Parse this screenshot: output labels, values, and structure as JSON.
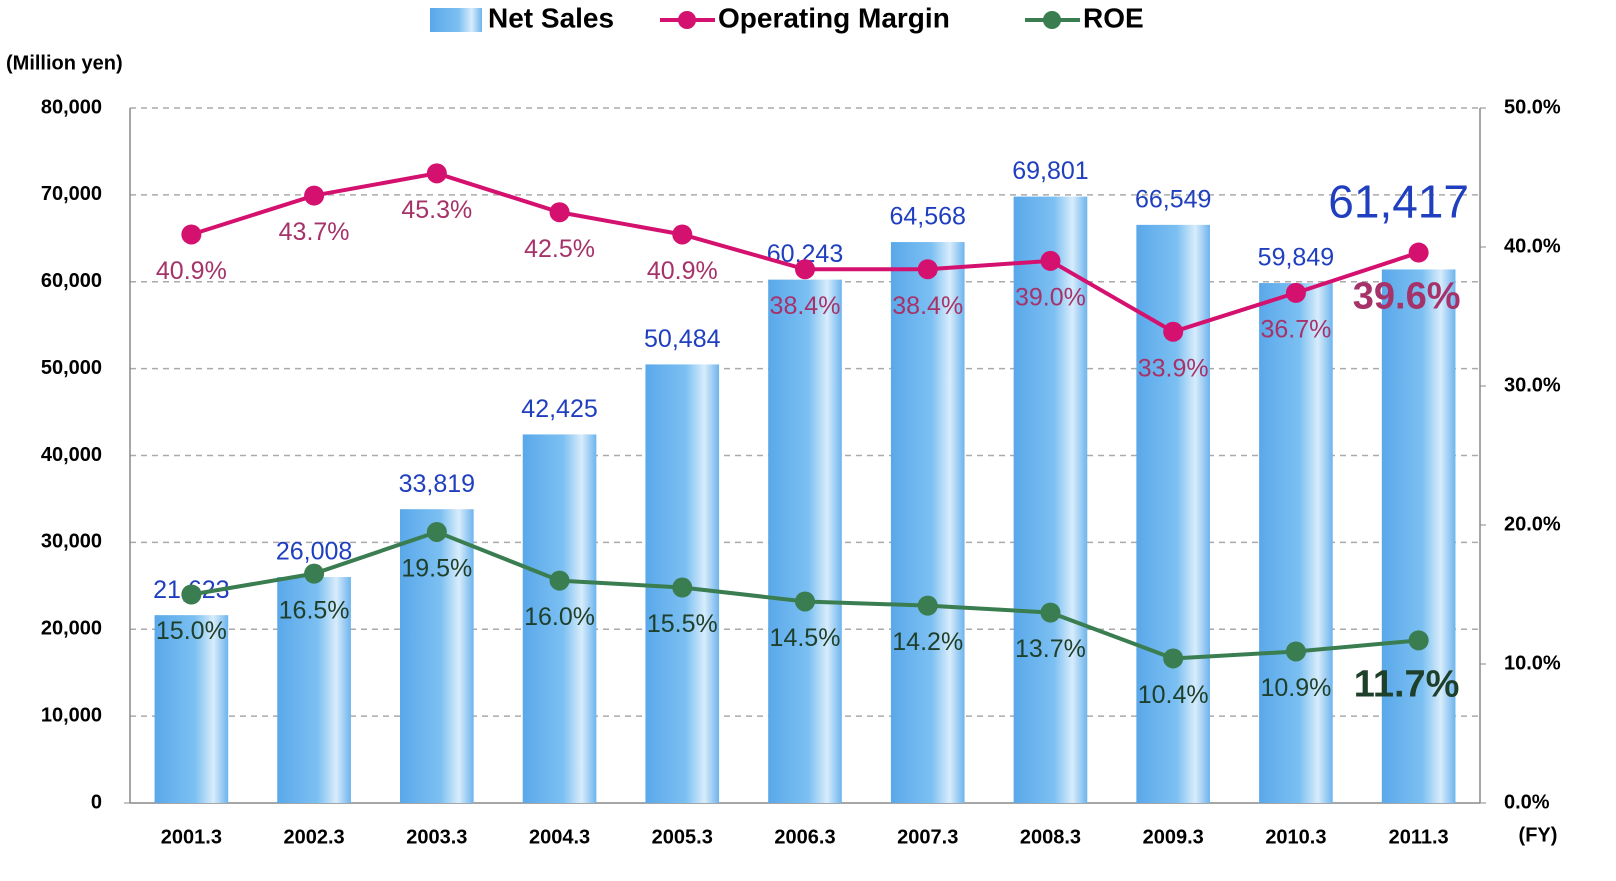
{
  "chart_data": {
    "type": "bar",
    "y_label": "(Million yen)",
    "x_label": "(FY)",
    "categories": [
      "2001.3",
      "2002.3",
      "2003.3",
      "2004.3",
      "2005.3",
      "2006.3",
      "2007.3",
      "2008.3",
      "2009.3",
      "2010.3",
      "2011.3"
    ],
    "series": [
      {
        "name": "Net Sales",
        "type": "bar",
        "axis": "y",
        "color": "#6db4ee",
        "label_color": "#1f3fbf",
        "values": [
          21623,
          26008,
          33819,
          42425,
          50484,
          60243,
          64568,
          69801,
          66549,
          59849,
          61417
        ],
        "value_labels": [
          "21,623",
          "26,008",
          "33,819",
          "42,425",
          "50,484",
          "60,243",
          "64,568",
          "69,801",
          "66,549",
          "59,849",
          "61,417"
        ]
      },
      {
        "name": "Operating Margin",
        "type": "line",
        "axis": "y2",
        "color": "#d4116e",
        "label_color": "#a5336a",
        "values": [
          40.9,
          43.7,
          45.3,
          42.5,
          40.9,
          38.4,
          38.4,
          39.0,
          33.9,
          36.7,
          39.6
        ],
        "value_labels": [
          "40.9%",
          "43.7%",
          "45.3%",
          "42.5%",
          "40.9%",
          "38.4%",
          "38.4%",
          "39.0%",
          "33.9%",
          "36.7%",
          "39.6%"
        ]
      },
      {
        "name": "ROE",
        "type": "line",
        "axis": "y2",
        "color": "#3a7d50",
        "label_color": "#1e3f2a",
        "values": [
          15.0,
          16.5,
          19.5,
          16.0,
          15.5,
          14.5,
          14.2,
          13.7,
          10.4,
          10.9,
          11.7
        ],
        "value_labels": [
          "15.0%",
          "16.5%",
          "19.5%",
          "16.0%",
          "15.5%",
          "14.5%",
          "14.2%",
          "13.7%",
          "10.4%",
          "10.9%",
          "11.7%"
        ]
      }
    ],
    "ylim": [
      0,
      80000
    ],
    "yticks": [
      0,
      {
        "value": 10000,
        "label": "10,000"
      },
      {
        "value": 20000,
        "label": "20,000"
      },
      {
        "value": 30000,
        "label": "30,000"
      },
      {
        "value": 40000,
        "label": "40,000"
      },
      {
        "value": 50000,
        "label": "50,000"
      },
      {
        "value": 60000,
        "label": "60,000"
      },
      {
        "value": 70000,
        "label": "70,000"
      },
      {
        "value": 80000,
        "label": "80,000"
      }
    ],
    "y2lim": [
      0,
      50
    ],
    "y2ticks": [
      {
        "value": 0,
        "label": "0.0%"
      },
      {
        "value": 10,
        "label": "10.0%"
      },
      {
        "value": 20,
        "label": "20.0%"
      },
      {
        "value": 30,
        "label": "30.0%"
      },
      {
        "value": 40,
        "label": "40.0%"
      },
      {
        "value": 50,
        "label": "50.0%"
      }
    ],
    "grid": true,
    "legend": "top"
  }
}
